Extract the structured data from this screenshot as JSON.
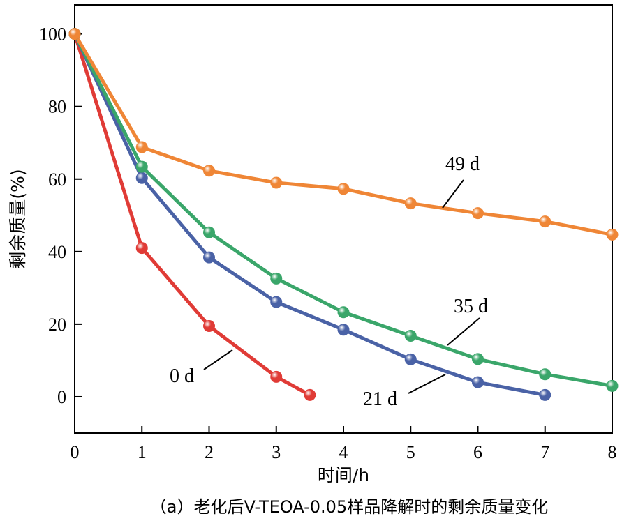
{
  "chart_data": {
    "type": "line",
    "title": "",
    "caption": "（a）老化后V-TEOA-0.05样品降解时的剩余质量变化",
    "xlabel": "时间/h",
    "ylabel": "剩余质量(%)",
    "xlim": [
      0,
      8
    ],
    "ylim": [
      -10,
      108
    ],
    "xticks": [
      0,
      1,
      2,
      3,
      4,
      5,
      6,
      7,
      8
    ],
    "yticks": [
      0,
      20,
      40,
      60,
      80,
      100
    ],
    "grid": false,
    "legend": "none (series labelled inline with leader lines)",
    "series": [
      {
        "name": "0 d",
        "color": "#e03b36",
        "x": [
          0,
          1,
          2,
          3,
          3.5
        ],
        "y": [
          100,
          41,
          19.5,
          5.5,
          0.5
        ]
      },
      {
        "name": "21 d",
        "color": "#4a62a6",
        "x": [
          0,
          1,
          2,
          3,
          4,
          5,
          6,
          7
        ],
        "y": [
          100,
          60.3,
          38.4,
          26.1,
          18.5,
          10.3,
          4,
          0.5
        ]
      },
      {
        "name": "35 d",
        "color": "#3aa66a",
        "x": [
          0,
          1,
          2,
          3,
          4,
          5,
          6,
          7,
          8
        ],
        "y": [
          100,
          63.4,
          45.3,
          32.6,
          23.3,
          16.8,
          10.4,
          6.2,
          3
        ]
      },
      {
        "name": "49 d",
        "color": "#ef8636",
        "x": [
          0,
          1,
          2,
          3,
          4,
          5,
          6,
          7,
          8
        ],
        "y": [
          100,
          68.8,
          62.3,
          59,
          57.3,
          53.3,
          50.6,
          48.3,
          44.7
        ]
      }
    ]
  }
}
